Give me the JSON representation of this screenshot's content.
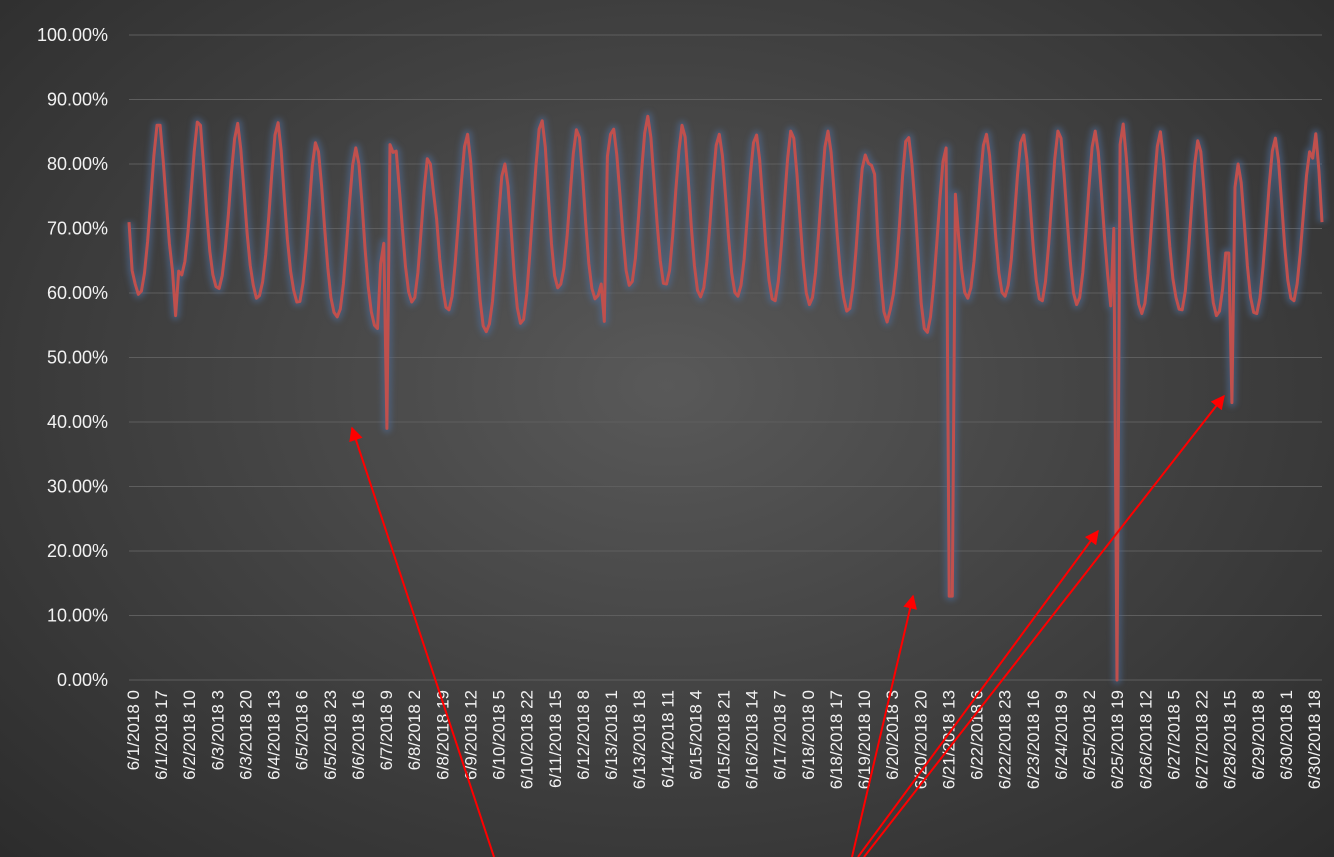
{
  "chart_data": {
    "type": "line",
    "title": "",
    "xlabel": "",
    "ylabel": "",
    "ylim": [
      0,
      100
    ],
    "ytick_labels": [
      "0.00%",
      "10.00%",
      "20.00%",
      "30.00%",
      "40.00%",
      "50.00%",
      "60.00%",
      "70.00%",
      "80.00%",
      "90.00%",
      "100.00%"
    ],
    "xtick_labels": [
      "6/1/2018  0",
      "6/1/2018  17",
      "6/2/2018  10",
      "6/3/2018  3",
      "6/3/2018  20",
      "6/4/2018  13",
      "6/5/2018  6",
      "6/5/2018  23",
      "6/6/2018  16",
      "6/7/2018  9",
      "6/8/2018  2",
      "6/8/2018  19",
      "6/9/2018  12",
      "6/10/2018  5",
      "6/10/2018  22",
      "6/11/2018  15",
      "6/12/2018  8",
      "6/13/2018  1",
      "6/13/2018  18",
      "6/14/2018  11",
      "6/15/2018  4",
      "6/15/2018  21",
      "6/16/2018  14",
      "6/17/2018  7",
      "6/18/2018  0",
      "6/18/2018  17",
      "6/19/2018  10",
      "6/20/2018  3",
      "6/20/2018  20",
      "6/21/2018  13",
      "6/22/2018  6",
      "6/22/2018  23",
      "6/23/2018  16",
      "6/24/2018  9",
      "6/25/2018  2",
      "6/25/2018  19",
      "6/26/2018  12",
      "6/27/2018  5",
      "6/27/2018  22",
      "6/28/2018  15",
      "6/29/2018  8",
      "6/30/2018  1",
      "6/30/2018  18"
    ],
    "series": [
      {
        "values": [
          71.0,
          63.5,
          61.4,
          59.8,
          60.3,
          63.1,
          68.0,
          74.4,
          81.3,
          86.0,
          86.0,
          80.5,
          74.0,
          67.7,
          63.4,
          56.5,
          63.4,
          62.8,
          64.9,
          69.5,
          75.6,
          81.9,
          86.5,
          86.0,
          79.6,
          72.4,
          66.5,
          62.8,
          61.0,
          60.7,
          62.7,
          66.8,
          72.2,
          78.7,
          83.9,
          86.3,
          82.3,
          75.8,
          69.3,
          64.3,
          61.2,
          59.2,
          59.6,
          61.7,
          65.9,
          71.9,
          78.7,
          84.5,
          86.4,
          82.0,
          74.8,
          68.3,
          63.4,
          60.4,
          58.6,
          58.7,
          61.5,
          66.6,
          73.1,
          79.7,
          83.3,
          81.9,
          76.6,
          69.9,
          63.9,
          59.3,
          57.0,
          56.3,
          57.5,
          61.4,
          67.4,
          74.1,
          79.9,
          82.5,
          80.0,
          73.9,
          66.8,
          61.0,
          57.1,
          55.0,
          54.5,
          64.5,
          67.7,
          39.0,
          83.0,
          81.8,
          82.0,
          76.2,
          70.0,
          64.1,
          60.2,
          58.6,
          59.3,
          63.2,
          69.4,
          75.9,
          80.8,
          80.0,
          75.6,
          71.5,
          65.3,
          60.8,
          57.8,
          57.4,
          59.5,
          64.6,
          70.9,
          77.3,
          82.7,
          84.6,
          80.3,
          73.1,
          65.4,
          58.9,
          54.9,
          54.0,
          55.2,
          58.7,
          64.9,
          72.0,
          78.1,
          80.0,
          76.6,
          69.9,
          62.9,
          57.7,
          55.3,
          55.9,
          59.8,
          66.0,
          73.0,
          79.8,
          85.4,
          86.7,
          82.6,
          74.9,
          67.6,
          62.7,
          60.8,
          61.4,
          63.9,
          68.8,
          75.3,
          81.6,
          85.3,
          84.1,
          78.2,
          70.8,
          64.6,
          60.7,
          59.1,
          59.6,
          61.4,
          55.6,
          81.2,
          84.6,
          85.4,
          81.4,
          75.3,
          68.9,
          63.5,
          61.2,
          61.8,
          65.4,
          71.7,
          78.9,
          84.8,
          87.4,
          84.1,
          77.4,
          70.6,
          65.0,
          61.5,
          61.4,
          63.5,
          68.9,
          75.9,
          82.0,
          86.0,
          84.2,
          77.7,
          70.3,
          64.3,
          60.4,
          59.4,
          60.8,
          64.9,
          70.8,
          77.5,
          82.9,
          84.6,
          81.3,
          75.1,
          68.5,
          63.1,
          60.1,
          59.5,
          61.2,
          65.2,
          71.6,
          78.3,
          83.3,
          84.5,
          80.6,
          74.1,
          67.3,
          62.0,
          59.1,
          58.8,
          61.8,
          67.4,
          74.2,
          80.8,
          85.1,
          84.0,
          78.3,
          71.3,
          64.7,
          60.0,
          58.2,
          59.3,
          63.2,
          69.5,
          76.4,
          82.6,
          85.1,
          81.8,
          75.5,
          68.8,
          62.9,
          59.3,
          57.2,
          57.6,
          60.9,
          66.6,
          73.6,
          79.3,
          81.4,
          80.1,
          79.8,
          78.4,
          69.0,
          62.3,
          57.1,
          55.5,
          57.4,
          59.8,
          64.1,
          70.6,
          78.2,
          83.5,
          84.1,
          80.0,
          73.7,
          65.9,
          58.4,
          54.5,
          53.9,
          56.3,
          61.3,
          67.7,
          74.6,
          80.4,
          82.5,
          13.0,
          13.0,
          75.3,
          69.0,
          63.6,
          60.1,
          59.2,
          60.8,
          64.9,
          70.8,
          77.5,
          82.9,
          84.6,
          81.3,
          75.1,
          68.5,
          63.1,
          60.1,
          59.5,
          61.2,
          65.2,
          71.6,
          78.3,
          83.3,
          84.5,
          80.6,
          74.1,
          67.3,
          62.0,
          59.1,
          58.8,
          61.8,
          67.4,
          74.2,
          80.8,
          85.1,
          84.0,
          78.3,
          71.3,
          64.7,
          60.0,
          58.2,
          59.3,
          63.2,
          69.5,
          76.4,
          82.6,
          85.1,
          81.8,
          75.5,
          68.8,
          62.9,
          58.0,
          70.0,
          0.0,
          83.0,
          86.2,
          81.0,
          74.5,
          67.9,
          62.2,
          58.3,
          56.8,
          58.4,
          63.0,
          69.7,
          76.8,
          82.7,
          85.0,
          80.7,
          73.9,
          67.2,
          62.2,
          59.3,
          57.5,
          57.4,
          60.3,
          66.2,
          73.2,
          79.8,
          83.6,
          81.9,
          76.1,
          69.1,
          62.8,
          58.5,
          56.5,
          57.2,
          60.6,
          66.2,
          66.2,
          43.0,
          76.4,
          80.0,
          77.1,
          70.9,
          64.2,
          59.4,
          57.0,
          56.8,
          59.2,
          64.0,
          70.1,
          76.7,
          82.0,
          84.0,
          80.5,
          74.0,
          67.2,
          62.0,
          59.2,
          58.8,
          61.4,
          66.3,
          72.3,
          78.2,
          81.9,
          80.9,
          84.7,
          79.0,
          71.0
        ]
      }
    ],
    "annotations": [
      "arrow-to-6/6-dip",
      "arrow-to-6/20-dip",
      "arrow-to-6/25-dip",
      "arrow-to-6/28-dip"
    ],
    "grid": true,
    "legend": "none"
  },
  "colors": {
    "line": "#c0504d",
    "line_glow": "#4f6d9a",
    "arrow": "#ff0000",
    "gridline": "#5e5e5e",
    "tick_text": "#f2f2f2"
  }
}
